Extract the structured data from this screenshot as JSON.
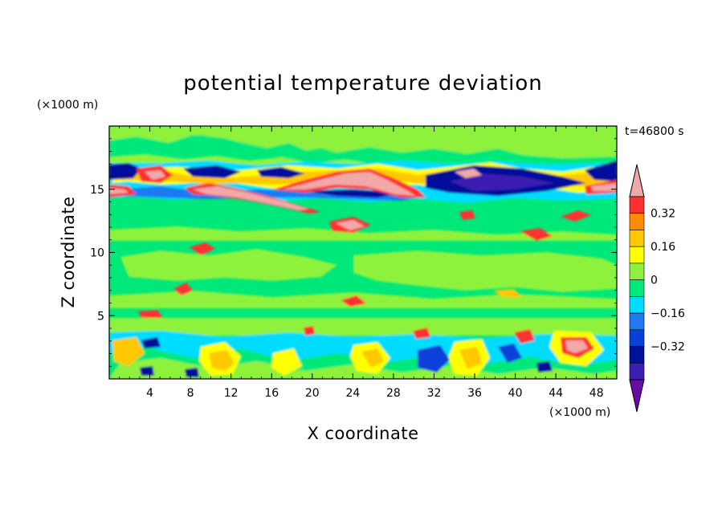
{
  "chart_data": {
    "type": "heatmap",
    "title": "potential temperature deviation",
    "time_label": "t=46800 s",
    "xlabel": "X coordinate",
    "ylabel": "Z coordinate",
    "x_unit": "(×1000 m)",
    "y_unit": "(×1000 m)",
    "xlim": [
      0,
      50
    ],
    "ylim": [
      0,
      20
    ],
    "x_ticks": [
      "4",
      "8",
      "12",
      "16",
      "20",
      "24",
      "28",
      "32",
      "36",
      "40",
      "44",
      "48"
    ],
    "y_ticks": [
      "5",
      "10",
      "15"
    ],
    "colorbar": {
      "levels": [
        -0.48,
        -0.4,
        -0.32,
        -0.24,
        -0.16,
        -0.08,
        0,
        0.08,
        0.16,
        0.24,
        0.32,
        0.4,
        0.48
      ],
      "colors": [
        "#6a0aa8",
        "#3a1fb0",
        "#00119a",
        "#0a3fd8",
        "#1f7af0",
        "#00dcff",
        "#00e87a",
        "#8ef23c",
        "#ffff00",
        "#ffc800",
        "#ff8c00",
        "#ff3030",
        "#f0a8a8"
      ],
      "tick_labels": [
        "0.32",
        "0.16",
        "0",
        "−0.16",
        "−0.32"
      ],
      "extend": "both"
    },
    "features": [
      {
        "kind": "positive_anomaly",
        "x": 20,
        "z": 14.5,
        "value": 0.48
      },
      {
        "kind": "positive_anomaly",
        "x": 24,
        "z": 15.5,
        "value": 0.48
      },
      {
        "kind": "negative_anomaly",
        "x": 38,
        "z": 15.5,
        "value": -0.48
      },
      {
        "kind": "negative_anomaly",
        "x": 2,
        "z": 16.2,
        "value": -0.4
      },
      {
        "kind": "positive_anomaly",
        "x": 45.5,
        "z": 2.5,
        "value": 0.48
      },
      {
        "kind": "negative_anomaly",
        "x": 31,
        "z": 1.8,
        "value": -0.24
      }
    ]
  }
}
